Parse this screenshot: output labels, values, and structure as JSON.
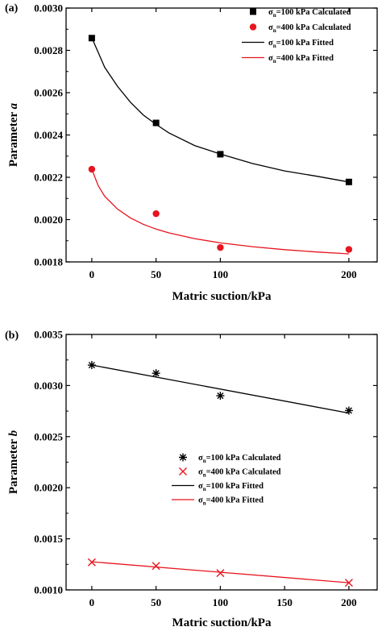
{
  "chart_data": [
    {
      "panel_label": "(a)",
      "type": "scatter",
      "xlabel": "Matric suction/kPa",
      "ylabel": "Parameter",
      "ylabel_var": "a",
      "xlim": [
        -20,
        222
      ],
      "ylim": [
        0.0018,
        0.003
      ],
      "xticks": [
        0,
        50,
        100,
        200
      ],
      "yticks": [
        0.0018,
        0.002,
        0.0022,
        0.0024,
        0.0026,
        0.0028,
        0.003
      ],
      "ytick_labels": [
        "0.0018",
        "0.0020",
        "0.0022",
        "0.0024",
        "0.0026",
        "0.0028",
        "0.0030"
      ],
      "xtick_labels": [
        "0",
        "50",
        "100",
        "200"
      ],
      "legend_position": "top-right",
      "series": [
        {
          "name": "σn=100 kPa  Calculated",
          "kind": "points",
          "marker": "square",
          "color": "#000000",
          "x": [
            0,
            50,
            100,
            200
          ],
          "y": [
            0.002858,
            0.002457,
            0.002309,
            0.002178
          ]
        },
        {
          "name": "σn=400 kPa  Calculated",
          "kind": "points",
          "marker": "circle",
          "color": "#e8141e",
          "x": [
            0,
            50,
            100,
            200
          ],
          "y": [
            0.002238,
            0.002028,
            0.001868,
            0.001859
          ]
        },
        {
          "name": "σn=100 kPa  Fitted",
          "kind": "line",
          "color": "#000000",
          "x": [
            0,
            10,
            20,
            30,
            40,
            50,
            60,
            80,
            100,
            125,
            150,
            175,
            200
          ],
          "y": [
            0.00286,
            0.00272,
            0.00263,
            0.002555,
            0.002495,
            0.00245,
            0.00241,
            0.00235,
            0.00231,
            0.002265,
            0.00223,
            0.002205,
            0.002178
          ]
        },
        {
          "name": "σn=400 kPa  Fitted",
          "kind": "line",
          "color": "#e8141e",
          "x": [
            0,
            5,
            10,
            20,
            30,
            40,
            50,
            60,
            80,
            100,
            125,
            150,
            175,
            200
          ],
          "y": [
            0.002238,
            0.00216,
            0.00211,
            0.00205,
            0.002008,
            0.001978,
            0.001955,
            0.001937,
            0.00191,
            0.00189,
            0.001872,
            0.001858,
            0.001847,
            0.001838
          ]
        }
      ]
    },
    {
      "panel_label": "(b)",
      "type": "scatter",
      "xlabel": "Matric suction/kPa",
      "ylabel": "Parameter",
      "ylabel_var": "b",
      "xlim": [
        -20,
        222
      ],
      "ylim": [
        0.001,
        0.0035
      ],
      "xticks": [
        0,
        50,
        100,
        150,
        200
      ],
      "yticks": [
        0.001,
        0.0015,
        0.002,
        0.0025,
        0.003,
        0.0035
      ],
      "ytick_labels": [
        "0.0010",
        "0.0015",
        "0.0020",
        "0.0025",
        "0.0030",
        "0.0035"
      ],
      "xtick_labels": [
        "0",
        "50",
        "100",
        "150",
        "200"
      ],
      "legend_position": "center",
      "series": [
        {
          "name": "σn=100 kPa  Calculated",
          "kind": "points",
          "marker": "asterisk",
          "color": "#000000",
          "x": [
            0,
            50,
            100,
            200
          ],
          "y": [
            0.0032,
            0.00312,
            0.0029,
            0.002755
          ]
        },
        {
          "name": "σn=400 kPa  Calculated",
          "kind": "points",
          "marker": "x",
          "color": "#e8141e",
          "x": [
            0,
            50,
            100,
            200
          ],
          "y": [
            0.00127,
            0.001235,
            0.001165,
            0.00107
          ]
        },
        {
          "name": "σn=100 kPa  Fitted",
          "kind": "line",
          "color": "#000000",
          "x": [
            0,
            200
          ],
          "y": [
            0.0032,
            0.00273
          ]
        },
        {
          "name": "σn=400 kPa  Fitted",
          "kind": "line",
          "color": "#e8141e",
          "x": [
            0,
            200
          ],
          "y": [
            0.001275,
            0.00107
          ]
        }
      ]
    }
  ]
}
